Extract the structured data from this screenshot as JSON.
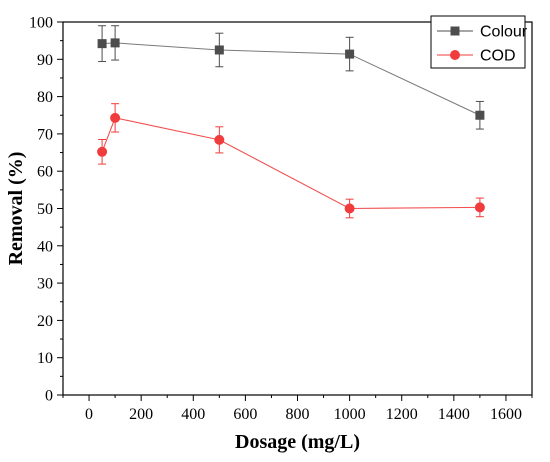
{
  "chart_data": {
    "type": "line",
    "xlabel": "Dosage (mg/L)",
    "ylabel": "Removal (%)",
    "xlim": [
      -100,
      1700
    ],
    "ylim": [
      0,
      100
    ],
    "x_ticks": [
      0,
      200,
      400,
      600,
      800,
      1000,
      1200,
      1400,
      1600
    ],
    "y_ticks": [
      0,
      10,
      20,
      30,
      40,
      50,
      60,
      70,
      80,
      90,
      100
    ],
    "grid": false,
    "legend_position": "top-right",
    "series": [
      {
        "name": "Colour",
        "marker": "square",
        "color": "#4d4d4d",
        "x": [
          50,
          100,
          500,
          1000,
          1500
        ],
        "y": [
          94.2,
          94.4,
          92.5,
          91.4,
          75.0
        ],
        "error": [
          4.8,
          4.6,
          4.5,
          4.5,
          3.7
        ]
      },
      {
        "name": "COD",
        "marker": "circle",
        "color": "#f03c3c",
        "x": [
          50,
          100,
          500,
          1000,
          1500
        ],
        "y": [
          65.2,
          74.3,
          68.4,
          50.0,
          50.3
        ],
        "error": [
          3.3,
          3.8,
          3.5,
          2.5,
          2.5
        ]
      }
    ]
  }
}
